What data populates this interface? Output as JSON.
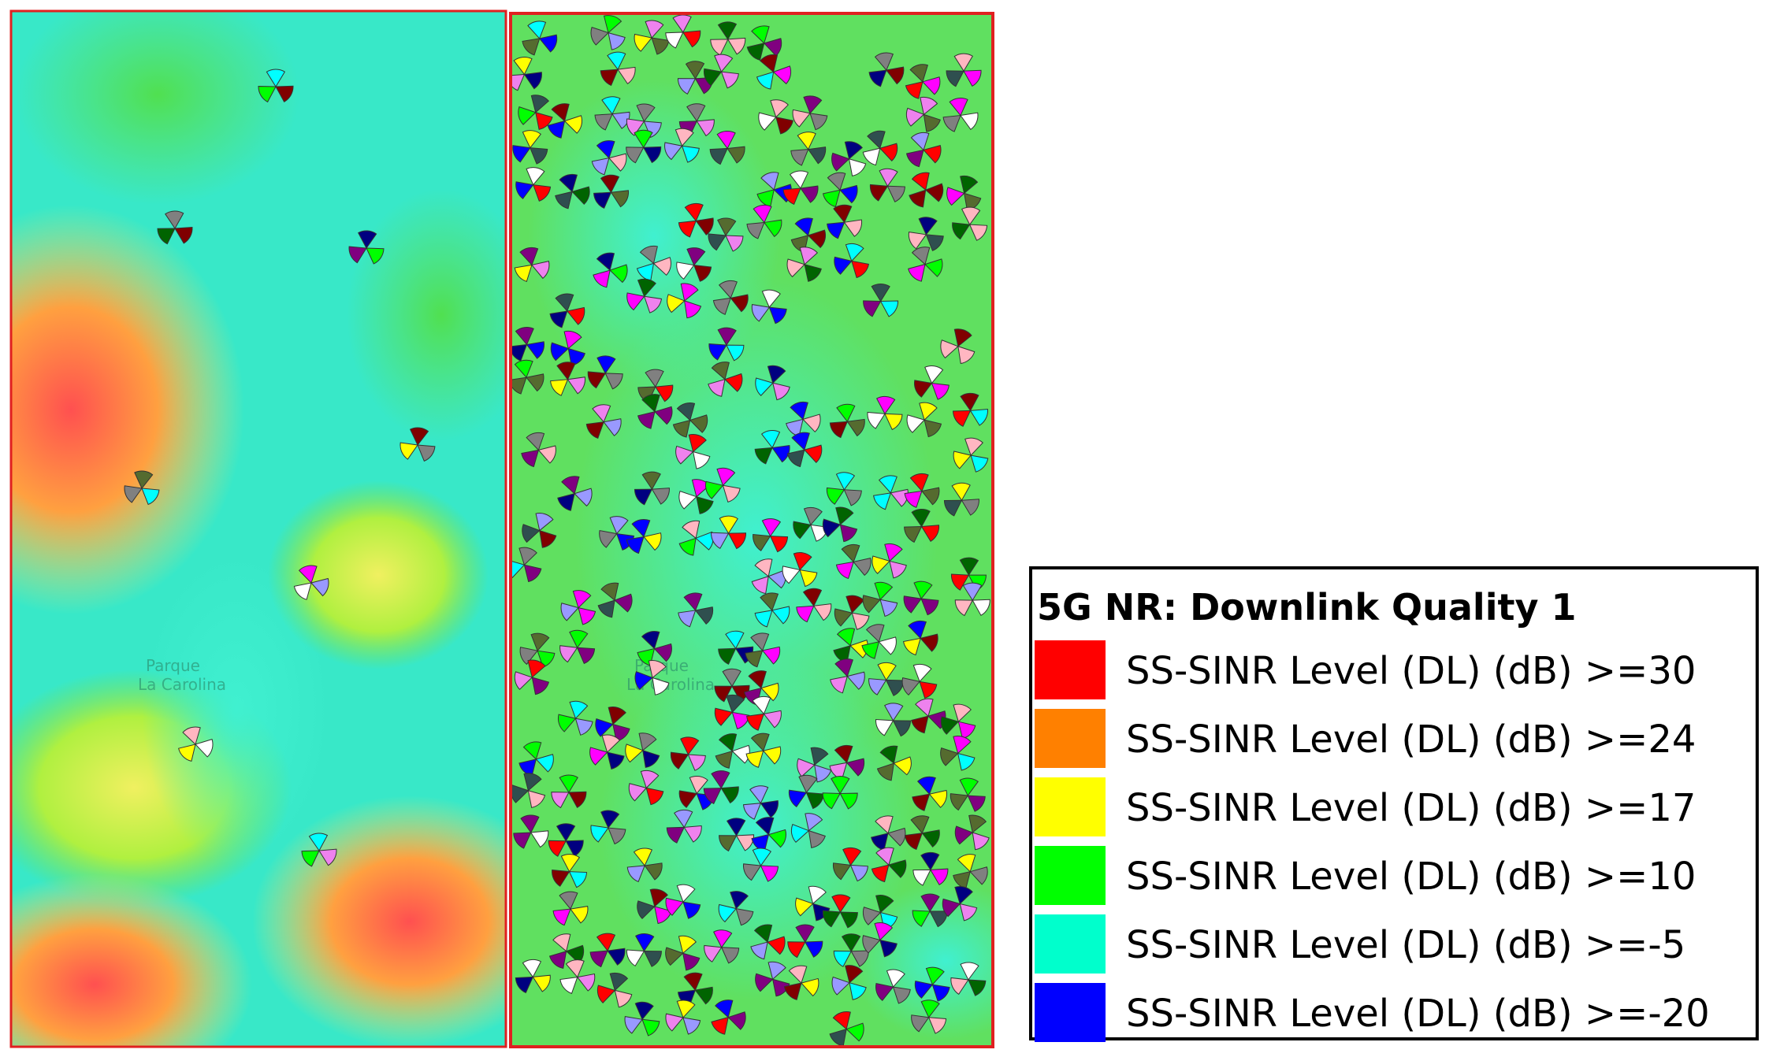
{
  "map_labels": [
    "Parque",
    "La Carolina"
  ],
  "legend": {
    "title": "5G NR: Downlink Quality 1",
    "items": [
      {
        "label": "SS-SINR Level (DL) (dB) >=30",
        "color": "#ff0000"
      },
      {
        "label": "SS-SINR Level (DL) (dB) >=24",
        "color": "#ff8000"
      },
      {
        "label": "SS-SINR Level (DL) (dB) >=17",
        "color": "#ffff00"
      },
      {
        "label": "SS-SINR Level (DL) (dB) >=10",
        "color": "#00ff00"
      },
      {
        "label": "SS-SINR Level (DL) (dB) >=-5",
        "color": "#00ffcc"
      },
      {
        "label": "SS-SINR Level (DL) (dB) >=-20",
        "color": "#0000ff"
      }
    ]
  }
}
